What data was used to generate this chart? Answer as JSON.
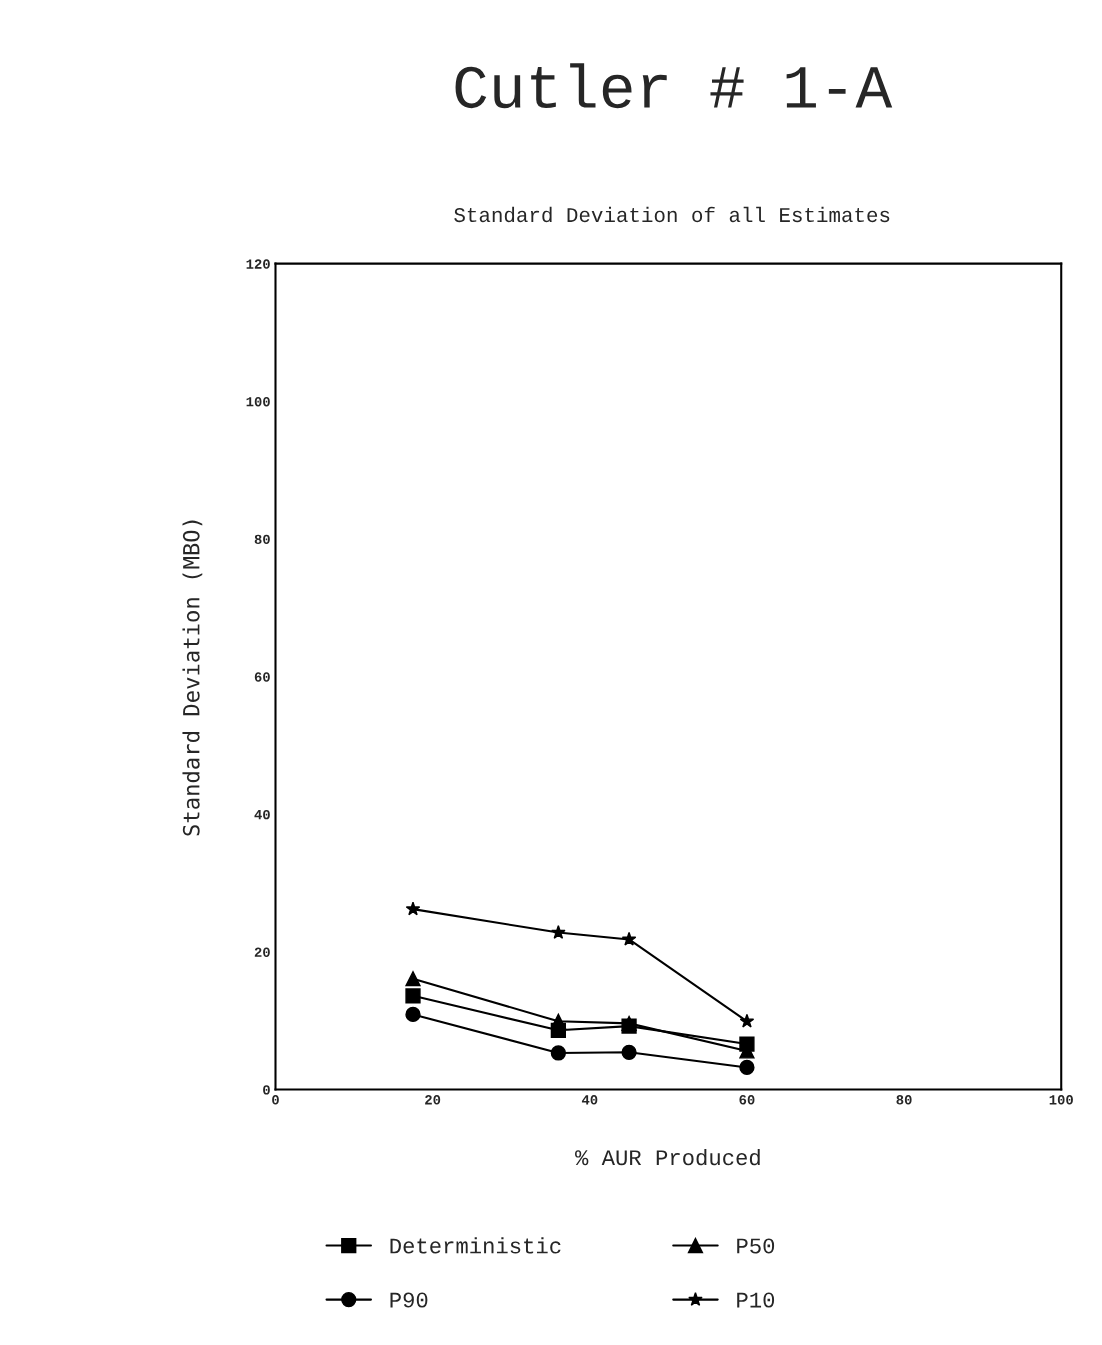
{
  "chart_data": {
    "type": "line",
    "title": "Cutler # 1-A",
    "subtitle": "Standard Deviation of all Estimates",
    "xlabel": "% AUR Produced",
    "ylabel": "Standard Deviation (MBO)",
    "x": [
      17.5,
      36,
      45,
      60
    ],
    "xlim": [
      0,
      100
    ],
    "xticks": [
      0,
      20,
      40,
      60,
      80,
      100
    ],
    "ylim": [
      0,
      120
    ],
    "yticks": [
      0,
      20,
      40,
      60,
      80,
      100,
      120
    ],
    "grid": false,
    "legend": "bottom",
    "series": [
      {
        "name": "Deterministic",
        "color": "#000000",
        "marker": "square",
        "values": [
          13.6,
          8.6,
          9.2,
          6.6
        ]
      },
      {
        "name": "P90",
        "color": "#000000",
        "marker": "circle",
        "values": [
          10.9,
          5.3,
          5.4,
          3.2
        ]
      },
      {
        "name": "P50",
        "color": "#000000",
        "marker": "triangle",
        "values": [
          16.1,
          9.9,
          9.6,
          5.6
        ]
      },
      {
        "name": "P10",
        "color": "#000000",
        "marker": "star",
        "values": [
          26.2,
          22.8,
          21.8,
          9.9
        ]
      }
    ]
  }
}
